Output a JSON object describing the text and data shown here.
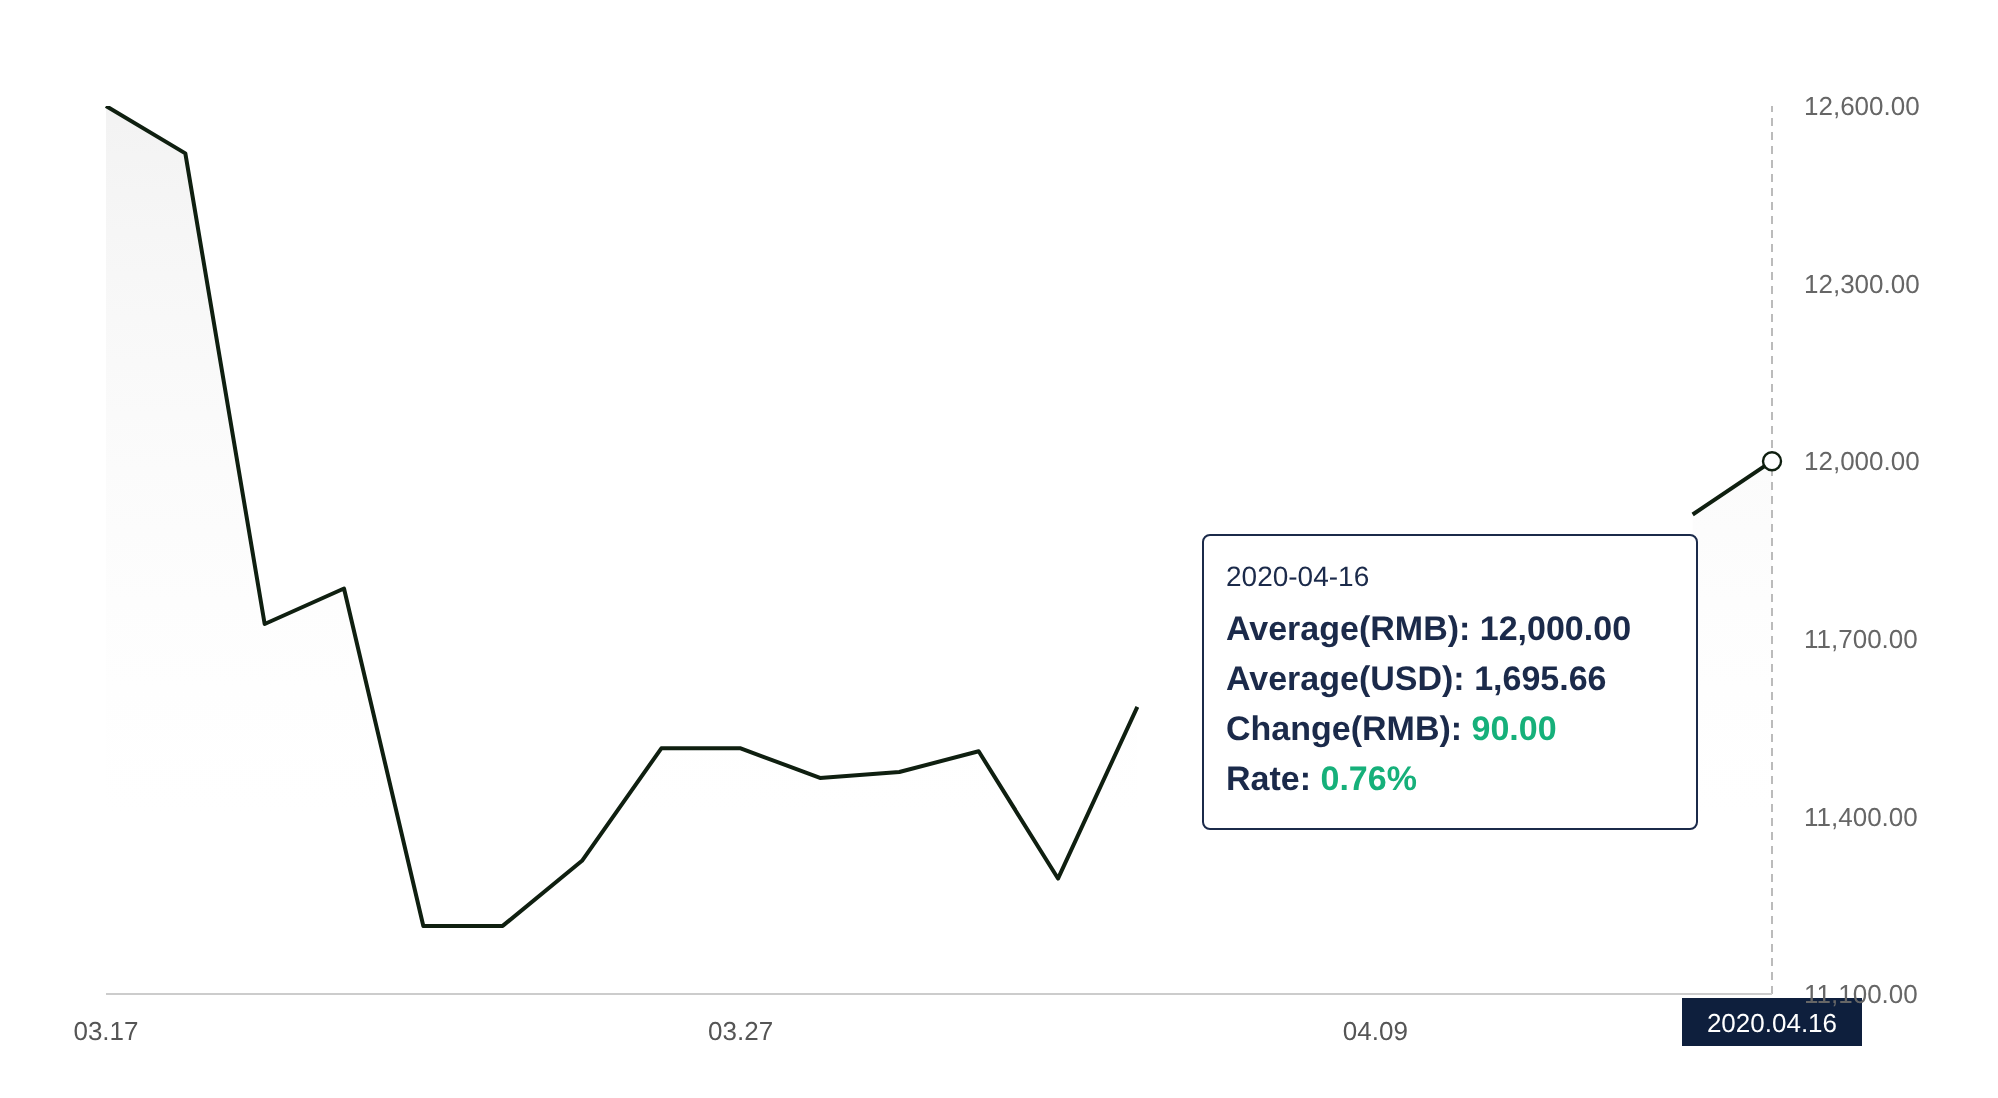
{
  "chart_data": {
    "type": "area",
    "categories": [
      "03.17",
      null,
      null,
      null,
      null,
      null,
      null,
      null,
      "03.27",
      null,
      null,
      null,
      null,
      null,
      null,
      null,
      "04.09",
      null,
      null,
      null,
      null,
      "2020.04.16"
    ],
    "series": [
      {
        "color": "#0f1f10",
        "values": [
          12600,
          12520,
          11725,
          11785,
          11215,
          11215,
          11325,
          11515,
          11515,
          11465,
          11475,
          11510,
          11295,
          11585,
          null,
          null,
          null,
          null,
          null,
          null,
          11910,
          12000
        ]
      }
    ],
    "ylim": [
      11100,
      12600
    ],
    "yticks": [
      {
        "value": 11100,
        "label": "11,100.00"
      },
      {
        "value": 11400,
        "label": "11,400.00"
      },
      {
        "value": 11700,
        "label": "11,700.00"
      },
      {
        "value": 12000,
        "label": "12,000.00"
      },
      {
        "value": 12300,
        "label": "12,300.00"
      },
      {
        "value": 12600,
        "label": "12,600.00"
      }
    ],
    "ref_lines": [
      {
        "axis": "x",
        "value": "2020.04.16",
        "color": "#bbbbbb",
        "line_style": "dashed"
      }
    ],
    "annotations": [
      "2020-04-16",
      "Average(RMB): 12,000.00",
      "Average(USD): 1,695.66",
      "Change(RMB): 90.00",
      "Rate: 0.76%"
    ],
    "marker": "none",
    "line_style": "solid"
  }
}
